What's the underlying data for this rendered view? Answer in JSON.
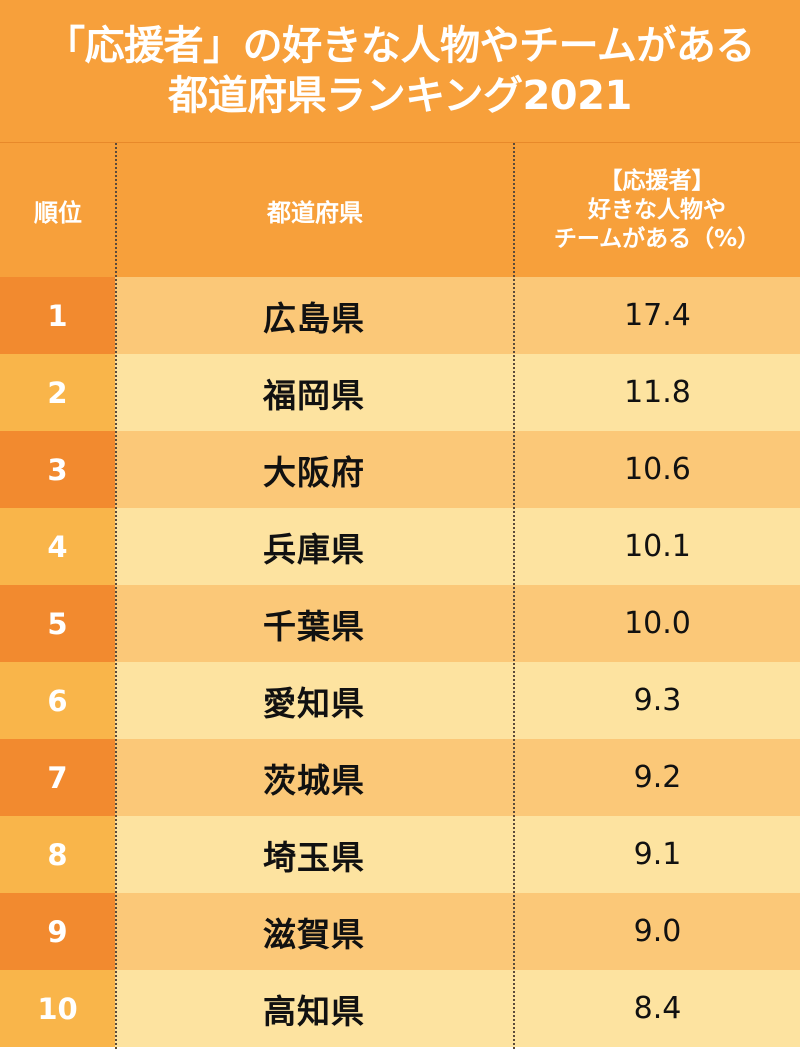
{
  "title": {
    "line1": "「応援者」の好きな人物やチームがある",
    "line2": "都道府県ランキング2021"
  },
  "columns": {
    "rank": "順位",
    "prefecture": "都道府県",
    "value_line1": "【応援者】",
    "value_line2": "好きな人物や",
    "value_line3": "チームがある（%）"
  },
  "colors": {
    "header": "#f7a03b",
    "rank_odd": "#f28a2f",
    "rank_even": "#f9b54a",
    "row_odd": "#fbc878",
    "row_even": "#fde3a0"
  },
  "chart_data": {
    "type": "table",
    "title": "「応援者」の好きな人物やチームがある都道府県ランキング2021",
    "columns": [
      "順位",
      "都道府県",
      "【応援者】好きな人物やチームがある（%）"
    ],
    "rows": [
      {
        "rank": "1",
        "prefecture": "広島県",
        "value": "17.4"
      },
      {
        "rank": "2",
        "prefecture": "福岡県",
        "value": "11.8"
      },
      {
        "rank": "3",
        "prefecture": "大阪府",
        "value": "10.6"
      },
      {
        "rank": "4",
        "prefecture": "兵庫県",
        "value": "10.1"
      },
      {
        "rank": "5",
        "prefecture": "千葉県",
        "value": "10.0"
      },
      {
        "rank": "6",
        "prefecture": "愛知県",
        "value": "9.3"
      },
      {
        "rank": "7",
        "prefecture": "茨城県",
        "value": "9.2"
      },
      {
        "rank": "8",
        "prefecture": "埼玉県",
        "value": "9.1"
      },
      {
        "rank": "9",
        "prefecture": "滋賀県",
        "value": "9.0"
      },
      {
        "rank": "10",
        "prefecture": "高知県",
        "value": "8.4"
      }
    ]
  }
}
